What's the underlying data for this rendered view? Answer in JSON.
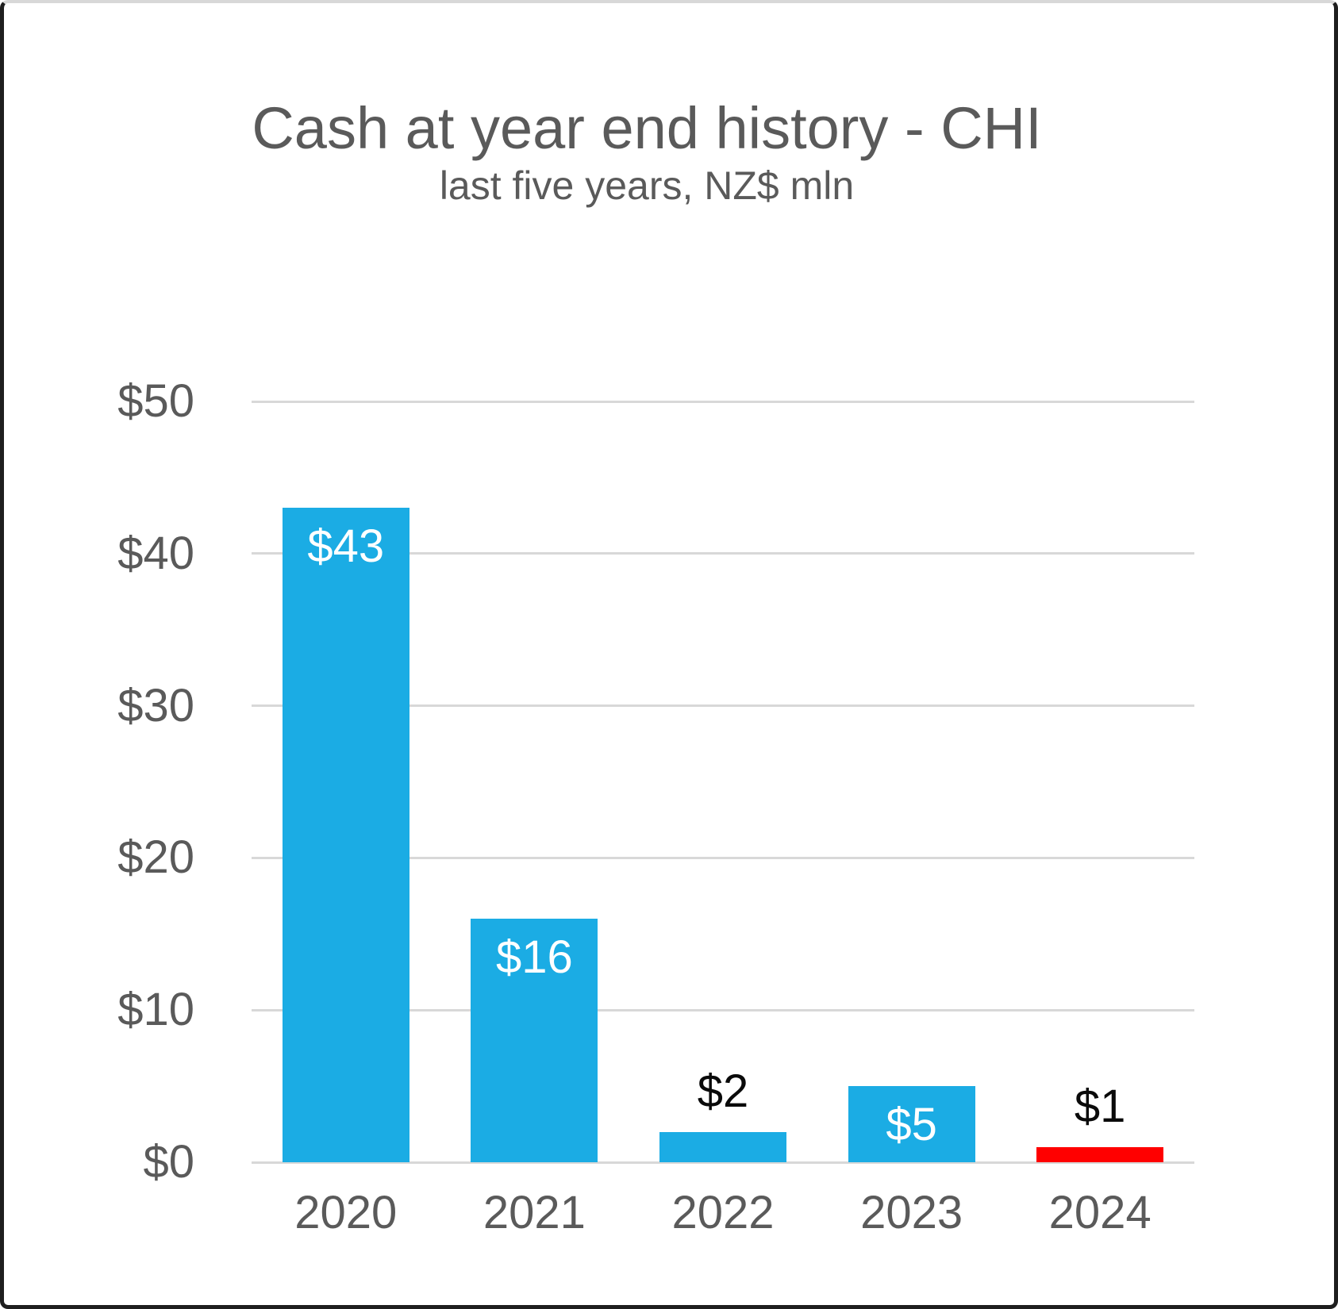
{
  "chart_data": {
    "type": "bar",
    "title": "Cash at year end history - CHI",
    "subtitle": "last five years, NZ$ mln",
    "categories": [
      "2020",
      "2021",
      "2022",
      "2023",
      "2024"
    ],
    "values": [
      43,
      16,
      2,
      5,
      1
    ],
    "bars": [
      {
        "category": "2020",
        "value": 43,
        "label": "$43",
        "label_position": "inside",
        "highlight": false
      },
      {
        "category": "2021",
        "value": 16,
        "label": "$16",
        "label_position": "inside",
        "highlight": false
      },
      {
        "category": "2022",
        "value": 2,
        "label": "$2",
        "label_position": "above",
        "highlight": false
      },
      {
        "category": "2023",
        "value": 5,
        "label": "$5",
        "label_position": "inside",
        "highlight": false
      },
      {
        "category": "2024",
        "value": 1,
        "label": "$1",
        "label_position": "above",
        "highlight": true
      }
    ],
    "yticks": [
      {
        "value": 0,
        "label": "$0"
      },
      {
        "value": 10,
        "label": "$10"
      },
      {
        "value": 20,
        "label": "$20"
      },
      {
        "value": 30,
        "label": "$30"
      },
      {
        "value": 40,
        "label": "$40"
      },
      {
        "value": 50,
        "label": "$50"
      }
    ],
    "ylim": [
      0,
      50
    ],
    "xlabel": "",
    "ylabel": "",
    "grid": true,
    "legend": false,
    "colors": {
      "bar": "#1BACE4",
      "highlight": "#FF0000",
      "text": "#5A5A5A",
      "label_inside": "#FFFFFF",
      "label_above": "#0A0A0A",
      "gridline": "#D8D8D8",
      "frame_border": "#1E1E1E"
    }
  }
}
